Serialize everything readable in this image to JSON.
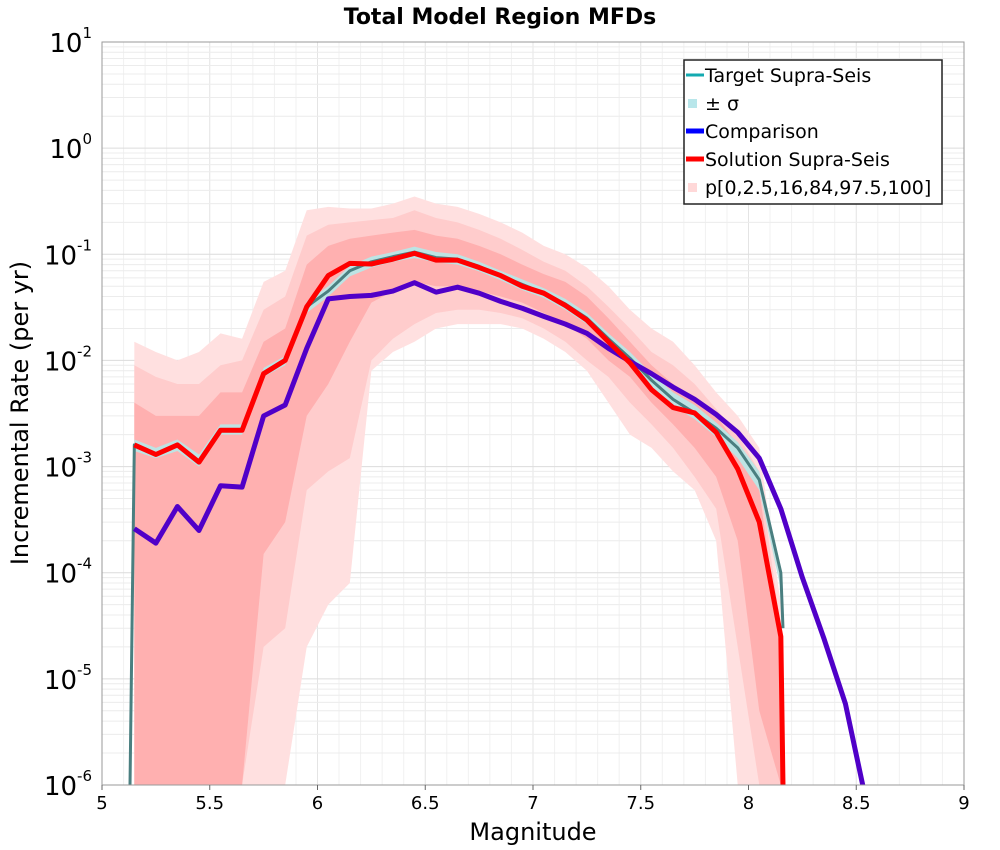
{
  "chart_data": {
    "type": "line",
    "title": "Total Model Region MFDs",
    "xlabel": "Magnitude",
    "ylabel": "Incremental Rate (per yr)",
    "xlim": [
      5,
      9
    ],
    "ylim": [
      1e-06,
      10
    ],
    "yscale": "log",
    "grid": true,
    "legend_position": "top-right",
    "x_ticks": [
      {
        "value": 5,
        "label": "5"
      },
      {
        "value": 5.5,
        "label": "5.5"
      },
      {
        "value": 6,
        "label": "6"
      },
      {
        "value": 6.5,
        "label": "6.5"
      },
      {
        "value": 7,
        "label": "7"
      },
      {
        "value": 7.5,
        "label": "7.5"
      },
      {
        "value": 8,
        "label": "8"
      },
      {
        "value": 8.5,
        "label": "8.5"
      },
      {
        "value": 9,
        "label": "9"
      }
    ],
    "y_ticks": [
      {
        "value": 1e-06,
        "base": "10",
        "exp": "-6"
      },
      {
        "value": 1e-05,
        "base": "10",
        "exp": "-5"
      },
      {
        "value": 0.0001,
        "base": "10",
        "exp": "-4"
      },
      {
        "value": 0.001,
        "base": "10",
        "exp": "-3"
      },
      {
        "value": 0.01,
        "base": "10",
        "exp": "-2"
      },
      {
        "value": 0.1,
        "base": "10",
        "exp": "-1"
      },
      {
        "value": 1,
        "base": "10",
        "exp": "0"
      },
      {
        "value": 10,
        "base": "10",
        "exp": "1"
      }
    ],
    "legend": [
      {
        "label": "Target Supra-Seis",
        "color": "#13aab0",
        "kind": "line"
      },
      {
        "label": "± σ",
        "color": "#b8e6ea",
        "kind": "patch"
      },
      {
        "label": "Comparison",
        "color": "#0000ff",
        "kind": "line"
      },
      {
        "label": "Solution Supra-Seis",
        "color": "#ff0000",
        "kind": "line"
      },
      {
        "label": "p[0,2.5,16,84,97.5,100]",
        "color": "#ffd8d8",
        "kind": "patch"
      }
    ],
    "bands": [
      {
        "name": "p[0,100]",
        "color": "#ffe0e0",
        "x": [
          5.15,
          5.25,
          5.35,
          5.45,
          5.55,
          5.65,
          5.75,
          5.85,
          5.95,
          6.05,
          6.15,
          6.25,
          6.35,
          6.45,
          6.55,
          6.65,
          6.75,
          6.85,
          6.95,
          7.05,
          7.15,
          7.25,
          7.35,
          7.45,
          7.55,
          7.65,
          7.75,
          7.85,
          7.95,
          8.05,
          8.15
        ],
        "upper": [
          0.015,
          0.012,
          0.01,
          0.012,
          0.018,
          0.016,
          0.055,
          0.07,
          0.26,
          0.28,
          0.27,
          0.27,
          0.3,
          0.35,
          0.3,
          0.28,
          0.24,
          0.2,
          0.16,
          0.12,
          0.1,
          0.075,
          0.05,
          0.03,
          0.02,
          0.015,
          0.009,
          0.005,
          0.003,
          0.0015,
          5e-05
        ],
        "lower": [
          1e-06,
          1e-06,
          1e-06,
          1e-06,
          1e-06,
          1e-06,
          1e-06,
          1e-06,
          2e-05,
          5e-05,
          8e-05,
          0.008,
          0.012,
          0.015,
          0.02,
          0.022,
          0.022,
          0.022,
          0.02,
          0.016,
          0.012,
          0.008,
          0.004,
          0.002,
          0.0015,
          0.0009,
          0.0006,
          0.0002,
          1e-06,
          1e-06,
          1e-06
        ]
      },
      {
        "name": "p[2.5,97.5]",
        "color": "#ffcccc",
        "x": [
          5.15,
          5.25,
          5.35,
          5.45,
          5.55,
          5.65,
          5.75,
          5.85,
          5.95,
          6.05,
          6.15,
          6.25,
          6.35,
          6.45,
          6.55,
          6.65,
          6.75,
          6.85,
          6.95,
          7.05,
          7.15,
          7.25,
          7.35,
          7.45,
          7.55,
          7.65,
          7.75,
          7.85,
          7.95,
          8.05,
          8.15
        ],
        "upper": [
          0.009,
          0.007,
          0.006,
          0.006,
          0.009,
          0.01,
          0.03,
          0.04,
          0.15,
          0.19,
          0.2,
          0.21,
          0.22,
          0.26,
          0.22,
          0.2,
          0.17,
          0.14,
          0.11,
          0.085,
          0.07,
          0.05,
          0.032,
          0.02,
          0.012,
          0.009,
          0.006,
          0.0035,
          0.002,
          0.0009,
          3e-05
        ],
        "lower": [
          1e-06,
          1e-06,
          1e-06,
          1e-06,
          1e-06,
          1e-06,
          2e-05,
          3e-05,
          0.0006,
          0.0009,
          0.0012,
          0.01,
          0.016,
          0.022,
          0.028,
          0.03,
          0.03,
          0.028,
          0.025,
          0.02,
          0.015,
          0.01,
          0.007,
          0.004,
          0.0025,
          0.0015,
          0.0008,
          0.0004,
          2e-05,
          1e-06,
          1e-06
        ]
      },
      {
        "name": "p[16,84]",
        "color": "#ffb0b0",
        "x": [
          5.15,
          5.25,
          5.35,
          5.45,
          5.55,
          5.65,
          5.75,
          5.85,
          5.95,
          6.05,
          6.15,
          6.25,
          6.35,
          6.45,
          6.55,
          6.65,
          6.75,
          6.85,
          6.95,
          7.05,
          7.15,
          7.25,
          7.35,
          7.45,
          7.55,
          7.65,
          7.75,
          7.85,
          7.95,
          8.05,
          8.15
        ],
        "upper": [
          0.004,
          0.003,
          0.003,
          0.003,
          0.005,
          0.005,
          0.015,
          0.02,
          0.08,
          0.12,
          0.14,
          0.15,
          0.16,
          0.17,
          0.15,
          0.14,
          0.12,
          0.1,
          0.08,
          0.065,
          0.055,
          0.04,
          0.025,
          0.015,
          0.009,
          0.006,
          0.0045,
          0.003,
          0.0016,
          0.0006,
          2e-05
        ],
        "lower": [
          1e-06,
          1e-06,
          1e-06,
          1e-06,
          1e-06,
          1e-06,
          0.00015,
          0.0003,
          0.003,
          0.006,
          0.015,
          0.035,
          0.045,
          0.055,
          0.05,
          0.05,
          0.045,
          0.04,
          0.035,
          0.028,
          0.022,
          0.016,
          0.01,
          0.007,
          0.004,
          0.0025,
          0.0015,
          0.0008,
          0.0002,
          5e-06,
          1e-06
        ]
      },
      {
        "name": "± σ",
        "color": "#bde4e4",
        "x": [
          5.15,
          5.25,
          5.35,
          5.45,
          5.55,
          5.65,
          5.75,
          5.85,
          5.95,
          6.05,
          6.15,
          6.25,
          6.35,
          6.45,
          6.55,
          6.65,
          6.75,
          6.85,
          6.95,
          7.05,
          7.15,
          7.25,
          7.35,
          7.45,
          7.55,
          7.65,
          7.75,
          7.85,
          7.95,
          8.05,
          8.15
        ],
        "upper": [
          0.0018,
          0.0015,
          0.0018,
          0.0013,
          0.0025,
          0.0025,
          0.0085,
          0.011,
          0.036,
          0.05,
          0.078,
          0.095,
          0.105,
          0.118,
          0.105,
          0.1,
          0.085,
          0.07,
          0.058,
          0.048,
          0.038,
          0.028,
          0.018,
          0.012,
          0.0075,
          0.005,
          0.0038,
          0.0026,
          0.0017,
          0.0009,
          0.00011
        ],
        "lower": [
          0.0014,
          0.0012,
          0.0014,
          0.001,
          0.002,
          0.002,
          0.007,
          0.009,
          0.028,
          0.04,
          0.062,
          0.075,
          0.085,
          0.092,
          0.084,
          0.08,
          0.069,
          0.057,
          0.046,
          0.039,
          0.03,
          0.022,
          0.014,
          0.009,
          0.0056,
          0.0037,
          0.0028,
          0.0019,
          0.0012,
          0.0006,
          7e-05
        ]
      }
    ],
    "series": [
      {
        "name": "Target Supra-Seis",
        "color": "#4a7f80",
        "width": 3,
        "x": [
          5.13,
          5.15,
          5.25,
          5.35,
          5.45,
          5.55,
          5.65,
          5.75,
          5.85,
          5.95,
          6.05,
          6.15,
          6.25,
          6.35,
          6.45,
          6.55,
          6.65,
          6.75,
          6.85,
          6.95,
          7.05,
          7.15,
          7.25,
          7.35,
          7.45,
          7.55,
          7.65,
          7.75,
          7.85,
          7.95,
          8.05,
          8.15,
          8.16
        ],
        "y": [
          1e-06,
          0.0016,
          0.0013,
          0.0016,
          0.0011,
          0.0022,
          0.0022,
          0.0075,
          0.01,
          0.032,
          0.045,
          0.07,
          0.085,
          0.095,
          0.105,
          0.093,
          0.09,
          0.077,
          0.063,
          0.052,
          0.043,
          0.034,
          0.025,
          0.016,
          0.0105,
          0.0065,
          0.0043,
          0.0032,
          0.0023,
          0.0015,
          0.00075,
          0.0001,
          3e-05
        ]
      },
      {
        "name": "Comparison",
        "color": "#5000c8",
        "width": 5,
        "x": [
          5.15,
          5.25,
          5.35,
          5.45,
          5.55,
          5.65,
          5.75,
          5.85,
          5.95,
          6.05,
          6.15,
          6.25,
          6.35,
          6.45,
          6.55,
          6.65,
          6.75,
          6.85,
          6.95,
          7.05,
          7.15,
          7.25,
          7.35,
          7.45,
          7.55,
          7.65,
          7.75,
          7.85,
          7.95,
          8.05,
          8.15,
          8.25,
          8.35,
          8.45,
          8.53
        ],
        "y": [
          0.00026,
          0.00019,
          0.00042,
          0.00025,
          0.00066,
          0.00064,
          0.003,
          0.0038,
          0.013,
          0.038,
          0.04,
          0.041,
          0.045,
          0.054,
          0.044,
          0.049,
          0.043,
          0.036,
          0.031,
          0.026,
          0.022,
          0.018,
          0.013,
          0.0098,
          0.0075,
          0.0056,
          0.0043,
          0.0031,
          0.0021,
          0.0012,
          0.0004,
          9e-05,
          2.4e-05,
          5.8e-06,
          1e-06
        ]
      },
      {
        "name": "Solution Supra-Seis",
        "color": "#ff0000",
        "width": 5,
        "x": [
          5.15,
          5.25,
          5.35,
          5.45,
          5.55,
          5.65,
          5.75,
          5.85,
          5.95,
          6.05,
          6.15,
          6.25,
          6.35,
          6.45,
          6.55,
          6.65,
          6.75,
          6.85,
          6.95,
          7.05,
          7.15,
          7.25,
          7.35,
          7.45,
          7.55,
          7.65,
          7.75,
          7.85,
          7.95,
          8.05,
          8.15,
          8.16
        ],
        "y": [
          0.0016,
          0.0013,
          0.0016,
          0.0011,
          0.0022,
          0.0022,
          0.0075,
          0.01,
          0.032,
          0.063,
          0.082,
          0.081,
          0.09,
          0.102,
          0.088,
          0.088,
          0.075,
          0.063,
          0.05,
          0.043,
          0.033,
          0.024,
          0.015,
          0.0095,
          0.0053,
          0.0036,
          0.0032,
          0.0021,
          0.00095,
          0.0003,
          2.5e-05,
          1e-06
        ]
      }
    ]
  }
}
